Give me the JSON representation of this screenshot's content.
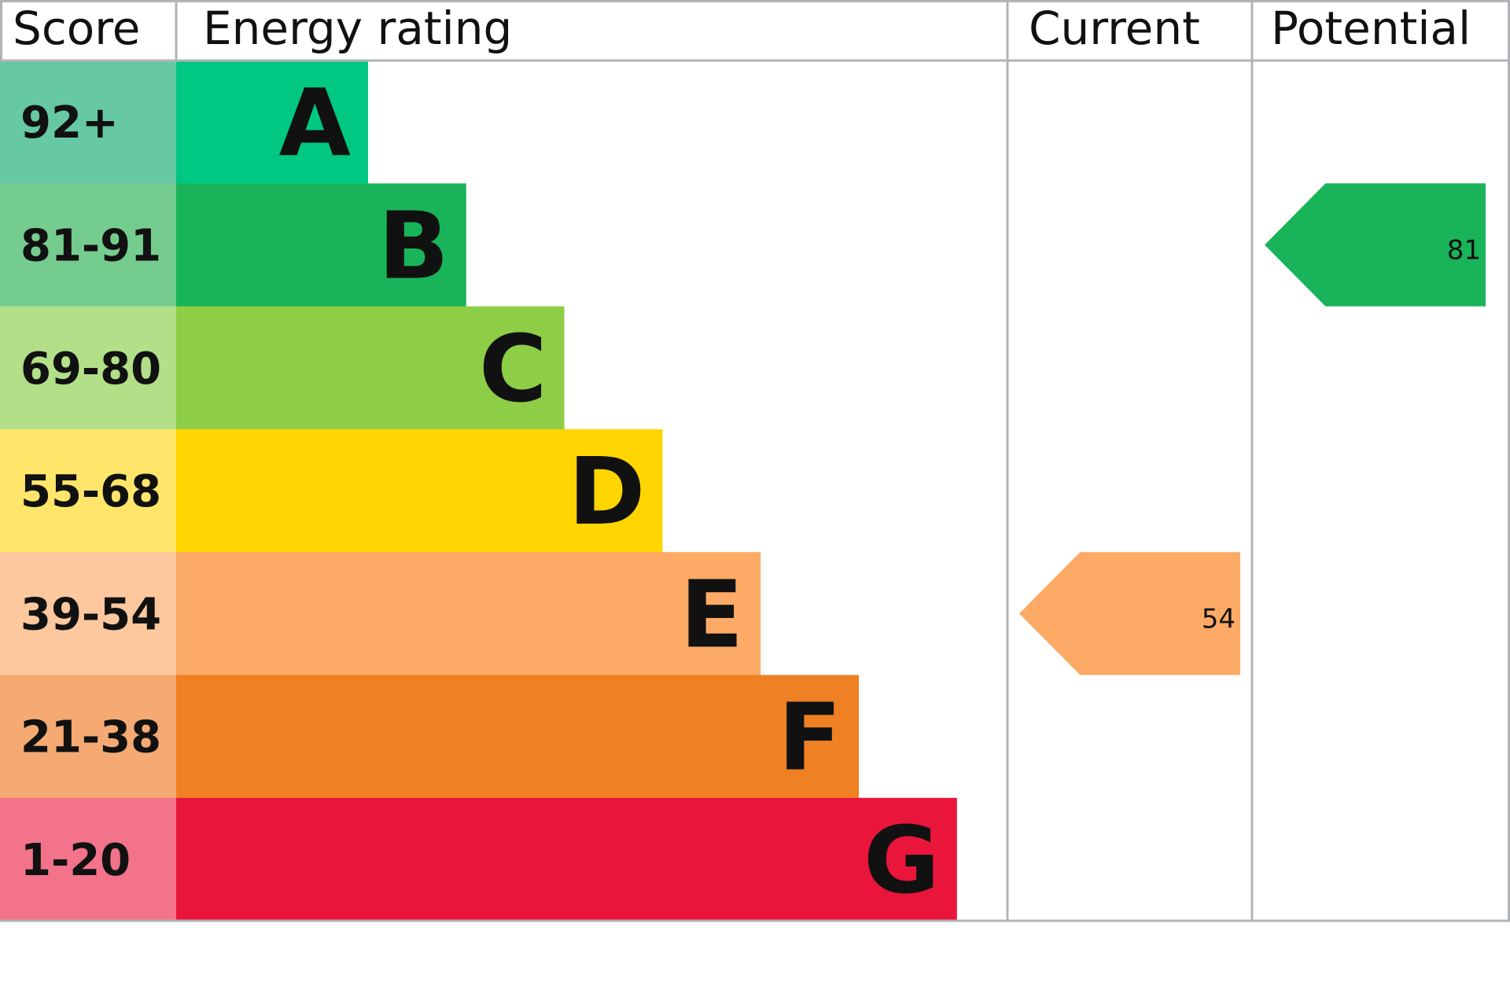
{
  "chart_data": {
    "type": "table",
    "headers": {
      "score": "Score",
      "rating": "Energy rating",
      "current": "Current",
      "potential": "Potential"
    },
    "bands": [
      {
        "score": "92+",
        "letter": "A",
        "color": "#00c781",
        "score_color": "#66c9a4"
      },
      {
        "score": "81-91",
        "letter": "B",
        "color": "#19b459",
        "score_color": "#75cc8f"
      },
      {
        "score": "69-80",
        "letter": "C",
        "color": "#8dce46",
        "score_color": "#b3df89"
      },
      {
        "score": "55-68",
        "letter": "D",
        "color": "#ffd500",
        "score_color": "#ffe66a"
      },
      {
        "score": "39-54",
        "letter": "E",
        "color": "#fcaa65",
        "score_color": "#fdc89d"
      },
      {
        "score": "21-38",
        "letter": "F",
        "color": "#ef8023",
        "score_color": "#f4aa72"
      },
      {
        "score": "1-20",
        "letter": "G",
        "color": "#e9153b",
        "score_color": "#f2738a"
      }
    ],
    "current": {
      "value": "54",
      "band": "E",
      "color": "#fcaa65"
    },
    "potential": {
      "value": "81",
      "band": "B",
      "color": "#19b459"
    },
    "grid_color": "#b1b4b6"
  }
}
